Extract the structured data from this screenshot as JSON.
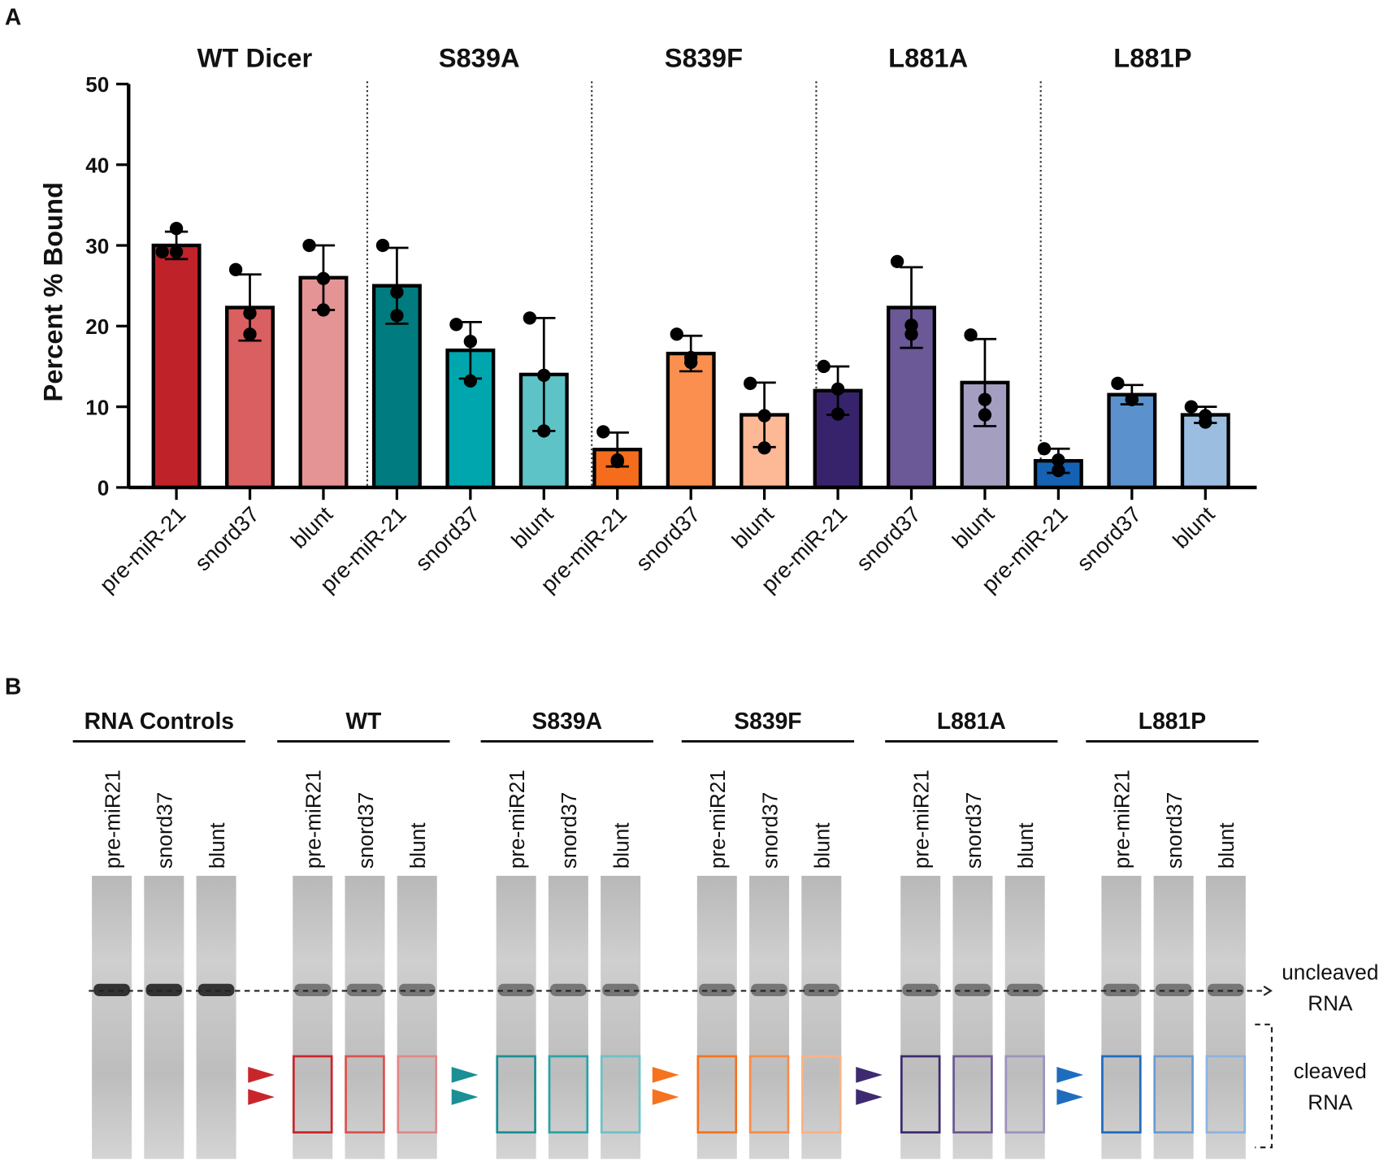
{
  "chart_data": {
    "type": "bar",
    "panel_label": "A",
    "ylabel": "Percent % Bound",
    "ylim": [
      0,
      50
    ],
    "yticks": [
      0,
      10,
      20,
      30,
      40,
      50
    ],
    "series": [
      {
        "name": "WT Dicer",
        "categories": [
          "pre-miR-21",
          "snord37",
          "blunt"
        ],
        "colors": [
          "#c0222a",
          "#d95f60",
          "#e49495"
        ],
        "values": [
          30,
          22.3,
          26
        ],
        "errors": [
          1.7,
          4.1,
          4
        ],
        "points": [
          [
            29.2,
            29.2,
            32.1
          ],
          [
            27,
            21.6,
            19
          ],
          [
            30,
            25.9,
            22
          ]
        ]
      },
      {
        "name": "S839A",
        "categories": [
          "pre-miR-21",
          "snord37",
          "blunt"
        ],
        "colors": [
          "#007c80",
          "#00a6ad",
          "#5ec3c7"
        ],
        "values": [
          25,
          17,
          14
        ],
        "errors": [
          4.7,
          3.5,
          7
        ],
        "points": [
          [
            30,
            24.2,
            21.3
          ],
          [
            20.2,
            18.1,
            13.2
          ],
          [
            21,
            13.9,
            7
          ]
        ]
      },
      {
        "name": "S839F",
        "categories": [
          "pre-miR-21",
          "snord37",
          "blunt"
        ],
        "colors": [
          "#f56d1c",
          "#fb8f4f",
          "#fdb896"
        ],
        "values": [
          4.7,
          16.6,
          9
        ],
        "errors": [
          2.1,
          2.2,
          4
        ],
        "points": [
          [
            6.9,
            3.4,
            3.2
          ],
          [
            19,
            15.5,
            16.1
          ],
          [
            12.9,
            8.9,
            4.9
          ]
        ]
      },
      {
        "name": "L881A",
        "categories": [
          "pre-miR-21",
          "snord37",
          "blunt"
        ],
        "colors": [
          "#37236b",
          "#6b5896",
          "#a49ec1"
        ],
        "values": [
          12,
          22.3,
          13
        ],
        "errors": [
          3,
          5,
          5.4
        ],
        "points": [
          [
            15,
            12.2,
            9.1
          ],
          [
            28,
            19,
            20.1
          ],
          [
            18.9,
            10.9,
            9
          ]
        ]
      },
      {
        "name": "L881P",
        "categories": [
          "pre-miR-21",
          "snord37",
          "blunt"
        ],
        "colors": [
          "#1562b5",
          "#5b91cc",
          "#9bbde0"
        ],
        "values": [
          3.3,
          11.5,
          9
        ],
        "errors": [
          1.5,
          1.2,
          1
        ],
        "points": [
          [
            4.8,
            2.1,
            3.4
          ],
          [
            12.9,
            10.9,
            10.9
          ],
          [
            10,
            8.1,
            8.9
          ]
        ]
      }
    ]
  },
  "gel": {
    "panel_label": "B",
    "groups": [
      {
        "title": "RNA Controls",
        "lanes": [
          "pre-miR21",
          "snord37",
          "blunt"
        ]
      },
      {
        "title": "WT",
        "lanes": [
          "pre-miR21",
          "snord37",
          "blunt"
        ],
        "colors": [
          "#c8262b",
          "#d9534f",
          "#e08a8a"
        ]
      },
      {
        "title": "S839A",
        "lanes": [
          "pre-miR21",
          "snord37",
          "blunt"
        ],
        "colors": [
          "#1a8f94",
          "#2aa3a8",
          "#6cc2c6"
        ]
      },
      {
        "title": "S839F",
        "lanes": [
          "pre-miR21",
          "snord37",
          "blunt"
        ],
        "colors": [
          "#f5731f",
          "#f98c48",
          "#fbb286"
        ]
      },
      {
        "title": "L881A",
        "lanes": [
          "pre-miR21",
          "snord37",
          "blunt"
        ],
        "colors": [
          "#3d2a70",
          "#6b5896",
          "#9c93bd"
        ]
      },
      {
        "title": "L881P",
        "lanes": [
          "pre-miR21",
          "snord37",
          "blunt"
        ],
        "colors": [
          "#1f6cbd",
          "#6a9bd2",
          "#8fb4de"
        ]
      }
    ],
    "uncleaved_label": [
      "uncleaved",
      "RNA"
    ],
    "cleaved_label": [
      "cleaved",
      "RNA"
    ]
  }
}
